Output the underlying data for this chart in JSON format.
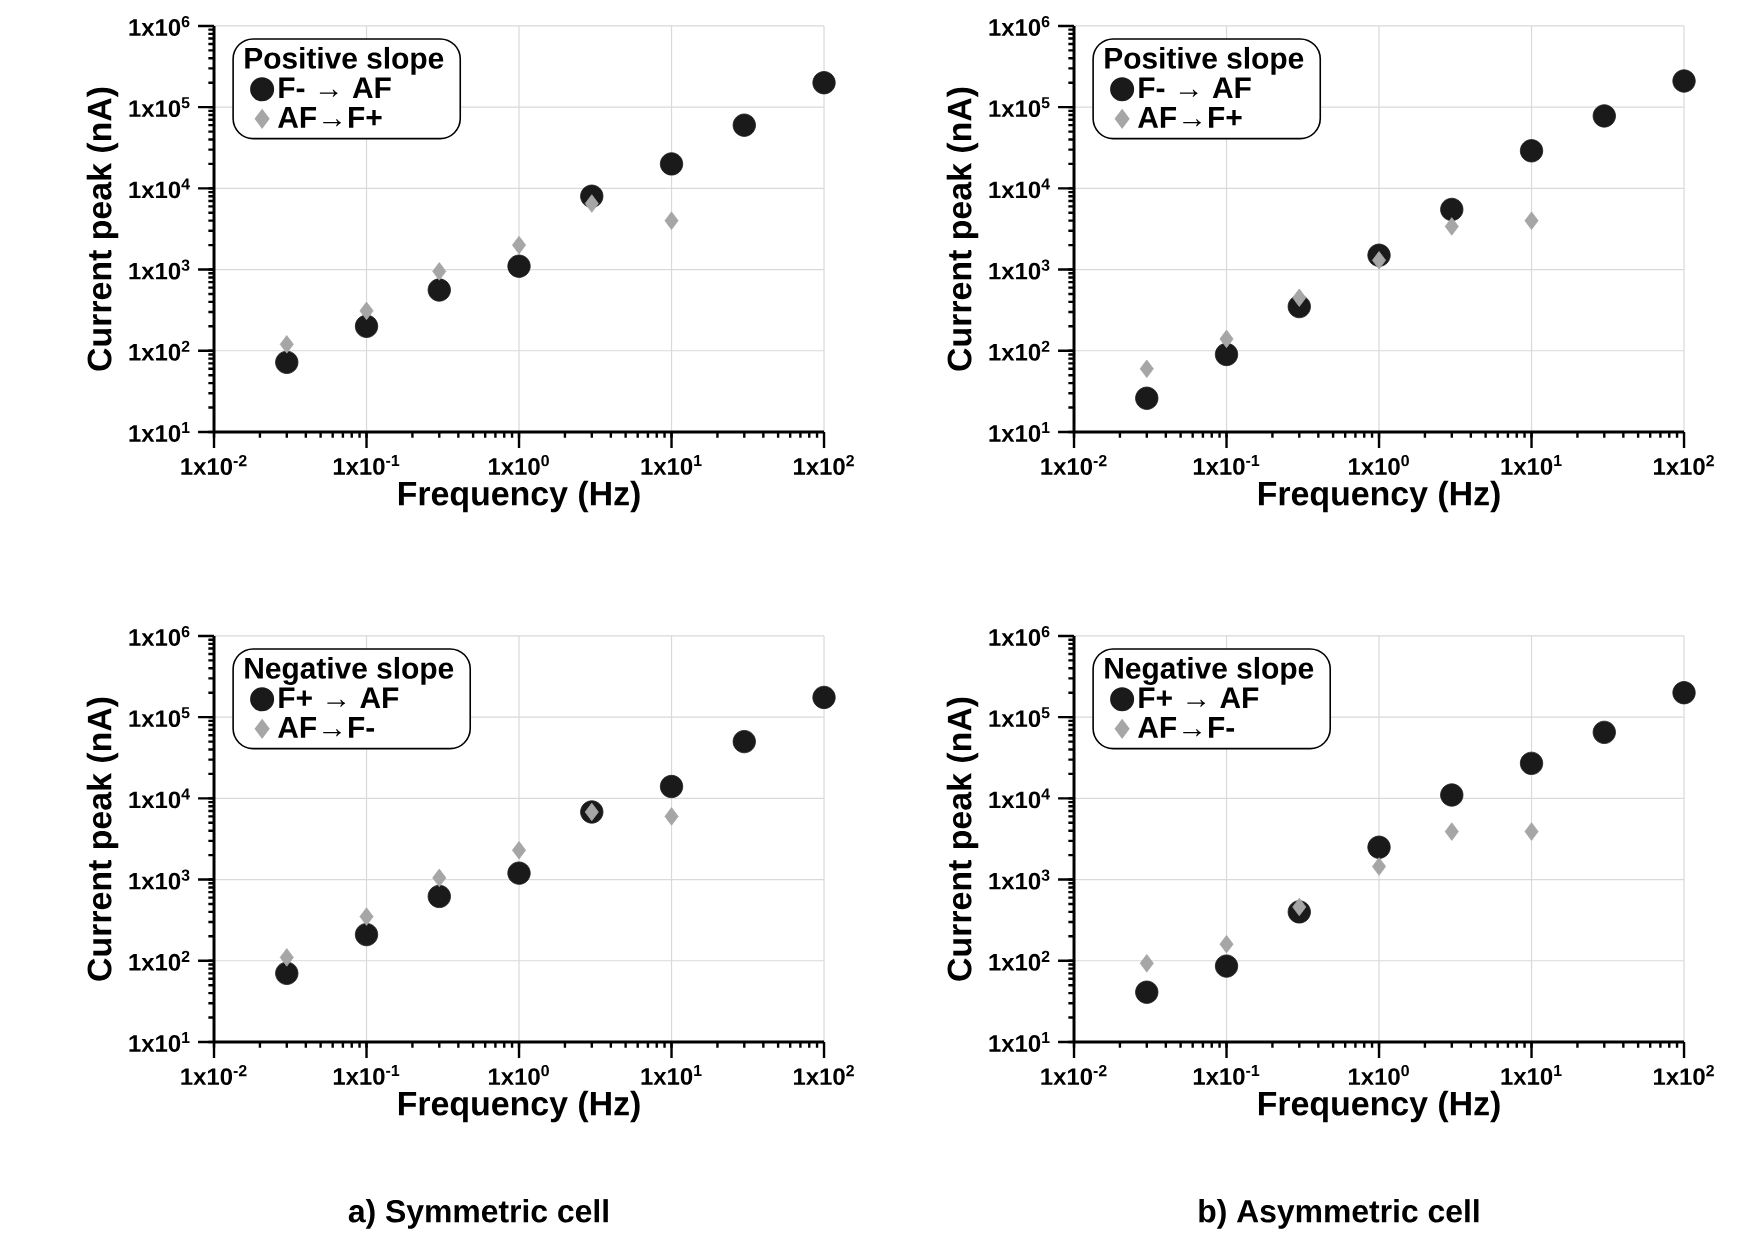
{
  "chart_data": [
    {
      "type": "scatter",
      "xlabel": "Frequency (Hz)",
      "ylabel": "Current peak (nA)",
      "legend_title": "Positive slope",
      "log": "xy",
      "grid": true,
      "legend": "top left",
      "x": [
        0.03,
        0.1,
        0.3,
        1,
        3,
        10,
        30,
        100
      ],
      "series": [
        {
          "name": "F- → AF",
          "color": "#1a1a1a",
          "marker": "circle",
          "values": [
            72,
            200,
            560,
            1100,
            8000,
            20000,
            60000,
            200000
          ]
        },
        {
          "name": "AF→F+",
          "color": "#a6a6a6",
          "marker": "diamond",
          "values": [
            120,
            310,
            950,
            2000,
            6500,
            4000,
            null,
            null
          ]
        }
      ],
      "xlim": [
        0.01,
        100
      ],
      "ylim": [
        10,
        1000000
      ],
      "xticks": [
        {
          "value": 0.01,
          "label": "1x10$^{-2}$"
        },
        {
          "value": 0.1,
          "label": "1x10$^{-1}$"
        },
        {
          "value": 1,
          "label": "1x10$^{0}$"
        },
        {
          "value": 10,
          "label": "1x10$^{1}$"
        },
        {
          "value": 100,
          "label": "1x10$^{2}$"
        }
      ],
      "yticks": [
        {
          "value": 10,
          "label": "1x10$^{1}$"
        },
        {
          "value": 100,
          "label": "1x10$^{2}$"
        },
        {
          "value": 1000,
          "label": "1x10$^{3}$"
        },
        {
          "value": 10000,
          "label": "1x10$^{4}$"
        },
        {
          "value": 100000,
          "label": "1x10$^{5}$"
        },
        {
          "value": 1000000,
          "label": "1x10$^{6}$"
        }
      ]
    },
    {
      "type": "scatter",
      "xlabel": "Frequency (Hz)",
      "ylabel": "Current peak (nA)",
      "legend_title": "Positive slope",
      "log": "xy",
      "grid": true,
      "legend": "top left",
      "x": [
        0.03,
        0.1,
        0.3,
        1,
        3,
        10,
        30,
        100
      ],
      "series": [
        {
          "name": "F- → AF",
          "color": "#1a1a1a",
          "marker": "circle",
          "values": [
            26,
            90,
            350,
            1500,
            5500,
            29000,
            78000,
            210000
          ]
        },
        {
          "name": "AF→F+",
          "color": "#a6a6a6",
          "marker": "diamond",
          "values": [
            60,
            140,
            450,
            1300,
            3400,
            4000,
            null,
            null
          ]
        }
      ],
      "xlim": [
        0.01,
        100
      ],
      "ylim": [
        10,
        1000000
      ],
      "xticks": [
        {
          "value": 0.01,
          "label": "1x10$^{-2}$"
        },
        {
          "value": 0.1,
          "label": "1x10$^{-1}$"
        },
        {
          "value": 1,
          "label": "1x10$^{0}$"
        },
        {
          "value": 10,
          "label": "1x10$^{1}$"
        },
        {
          "value": 100,
          "label": "1x10$^{2}$"
        }
      ],
      "yticks": [
        {
          "value": 10,
          "label": "1x10$^{1}$"
        },
        {
          "value": 100,
          "label": "1x10$^{2}$"
        },
        {
          "value": 1000,
          "label": "1x10$^{3}$"
        },
        {
          "value": 10000,
          "label": "1x10$^{4}$"
        },
        {
          "value": 100000,
          "label": "1x10$^{5}$"
        },
        {
          "value": 1000000,
          "label": "1x10$^{6}$"
        }
      ]
    },
    {
      "type": "scatter",
      "xlabel": "Frequency (Hz)",
      "ylabel": "Current peak (nA)",
      "legend_title": "Negative slope",
      "log": "xy",
      "grid": true,
      "legend": "top left",
      "annotations": [
        "a) Symmetric cell"
      ],
      "x": [
        0.03,
        0.1,
        0.3,
        1,
        3,
        10,
        30,
        100
      ],
      "series": [
        {
          "name": "F+ → AF",
          "color": "#1a1a1a",
          "marker": "circle",
          "values": [
            70,
            210,
            620,
            1200,
            6800,
            14000,
            50000,
            175000
          ]
        },
        {
          "name": "AF→F-",
          "color": "#a6a6a6",
          "marker": "diamond",
          "values": [
            110,
            350,
            1050,
            2300,
            6800,
            6000,
            null,
            null
          ]
        }
      ],
      "xlim": [
        0.01,
        100
      ],
      "ylim": [
        10,
        1000000
      ],
      "xticks": [
        {
          "value": 0.01,
          "label": "1x10$^{-2}$"
        },
        {
          "value": 0.1,
          "label": "1x10$^{-1}$"
        },
        {
          "value": 1,
          "label": "1x10$^{0}$"
        },
        {
          "value": 10,
          "label": "1x10$^{1}$"
        },
        {
          "value": 100,
          "label": "1x10$^{2}$"
        }
      ],
      "yticks": [
        {
          "value": 10,
          "label": "1x10$^{1}$"
        },
        {
          "value": 100,
          "label": "1x10$^{2}$"
        },
        {
          "value": 1000,
          "label": "1x10$^{3}$"
        },
        {
          "value": 10000,
          "label": "1x10$^{4}$"
        },
        {
          "value": 100000,
          "label": "1x10$^{5}$"
        },
        {
          "value": 1000000,
          "label": "1x10$^{6}$"
        }
      ]
    },
    {
      "type": "scatter",
      "xlabel": "Frequency (Hz)",
      "ylabel": "Current peak (nA)",
      "legend_title": "Negative slope",
      "log": "xy",
      "grid": true,
      "legend": "top left",
      "annotations": [
        "b) Asymmetric cell"
      ],
      "x": [
        0.03,
        0.1,
        0.3,
        1,
        3,
        10,
        30,
        100
      ],
      "series": [
        {
          "name": "F+ → AF",
          "color": "#1a1a1a",
          "marker": "circle",
          "values": [
            41,
            86,
            400,
            2500,
            11000,
            27000,
            65000,
            200000
          ]
        },
        {
          "name": "AF→F-",
          "color": "#a6a6a6",
          "marker": "diamond",
          "values": [
            93,
            160,
            460,
            1450,
            3900,
            3900,
            null,
            null
          ]
        }
      ],
      "xlim": [
        0.01,
        100
      ],
      "ylim": [
        10,
        1000000
      ],
      "xticks": [
        {
          "value": 0.01,
          "label": "1x10$^{-2}$"
        },
        {
          "value": 0.1,
          "label": "1x10$^{-1}$"
        },
        {
          "value": 1,
          "label": "1x10$^{0}$"
        },
        {
          "value": 10,
          "label": "1x10$^{1}$"
        },
        {
          "value": 100,
          "label": "1x10$^{2}$"
        }
      ],
      "yticks": [
        {
          "value": 10,
          "label": "1x10$^{1}$"
        },
        {
          "value": 100,
          "label": "1x10$^{2}$"
        },
        {
          "value": 1000,
          "label": "1x10$^{3}$"
        },
        {
          "value": 10000,
          "label": "1x10$^{4}$"
        },
        {
          "value": 100000,
          "label": "1x10$^{5}$"
        },
        {
          "value": 1000000,
          "label": "1x10$^{6}$"
        }
      ]
    }
  ]
}
